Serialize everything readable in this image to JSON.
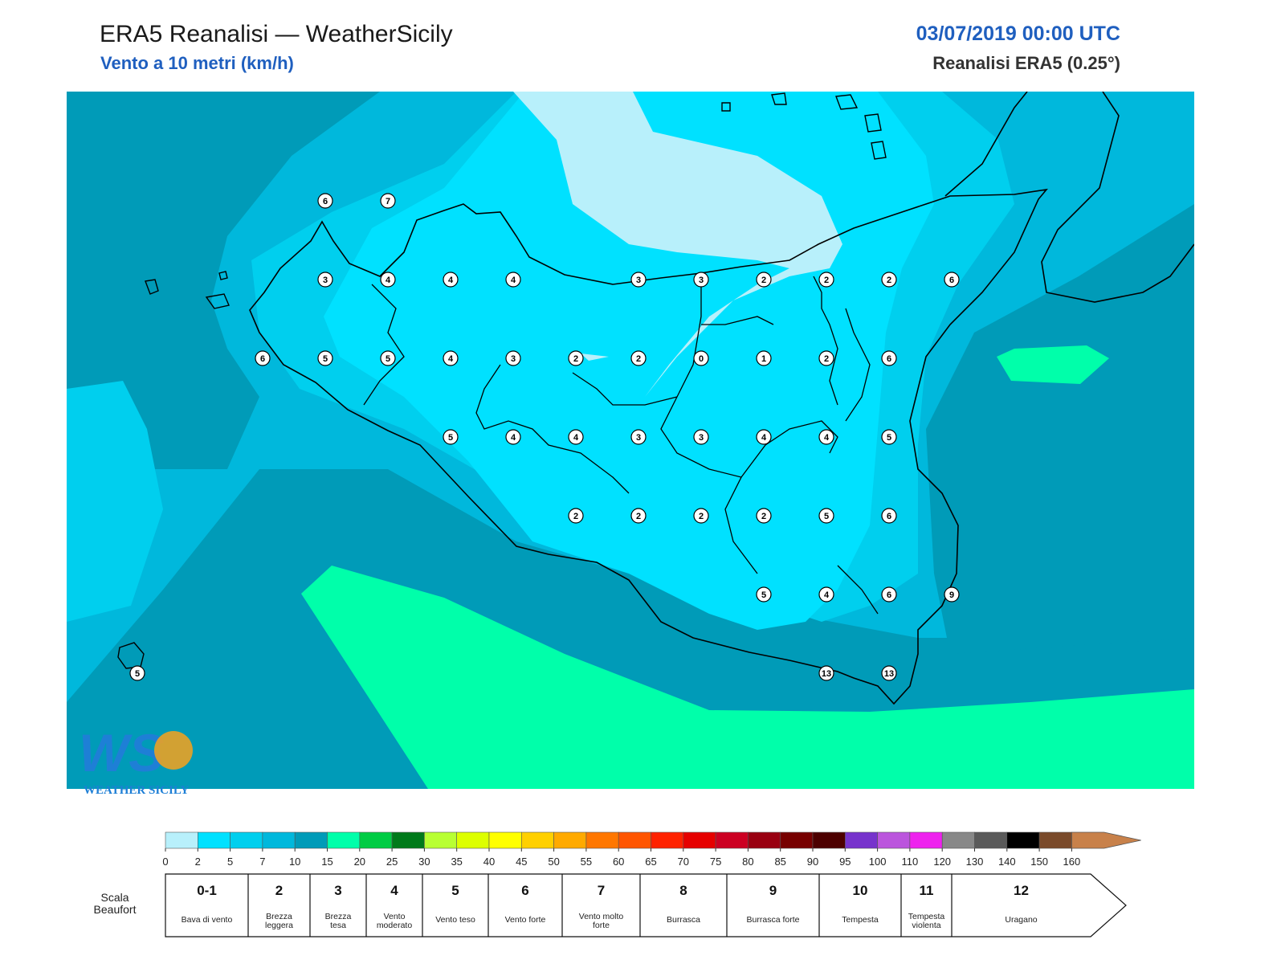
{
  "header": {
    "title": "ERA5 Reanalisi — WeatherSicily",
    "subtitle": "Vento a 10 metri (km/h)",
    "datetime": "03/07/2019 00:00 UTC",
    "model": "Reanalisi ERA5 (0.25°)"
  },
  "logo": {
    "text": "WEATHER SICILY",
    "initials": "WS"
  },
  "colorbar": {
    "ticks": [
      "0",
      "2",
      "5",
      "7",
      "10",
      "15",
      "20",
      "25",
      "30",
      "35",
      "40",
      "45",
      "50",
      "55",
      "60",
      "65",
      "70",
      "75",
      "80",
      "85",
      "90",
      "95",
      "100",
      "110",
      "120",
      "130",
      "140",
      "150",
      "160"
    ],
    "colors": [
      "#b8f0fb",
      "#00e1ff",
      "#00cfee",
      "#00b8dc",
      "#009bb8",
      "#00ffaa",
      "#00cc44",
      "#007a1a",
      "#b8ff33",
      "#ddff00",
      "#ffff00",
      "#ffd000",
      "#ffaa00",
      "#ff7700",
      "#ff5500",
      "#ff2200",
      "#e60000",
      "#cc0022",
      "#990011",
      "#770000",
      "#4d0000",
      "#7733cc",
      "#bb55dd",
      "#ee22ee",
      "#888888",
      "#5a5a5a",
      "#000000",
      "#7a4a2a",
      "#c8814a"
    ]
  },
  "beaufort": {
    "title": "Scala Beaufort",
    "items": [
      {
        "num": "0-1",
        "desc": "Bava di vento"
      },
      {
        "num": "2",
        "desc": "Brezza leggera"
      },
      {
        "num": "3",
        "desc": "Brezza tesa"
      },
      {
        "num": "4",
        "desc": "Vento moderato"
      },
      {
        "num": "5",
        "desc": "Vento teso"
      },
      {
        "num": "6",
        "desc": "Vento forte"
      },
      {
        "num": "7",
        "desc": "Vento molto forte"
      },
      {
        "num": "8",
        "desc": "Burrasca"
      },
      {
        "num": "9",
        "desc": "Burrasca forte"
      },
      {
        "num": "10",
        "desc": "Tempesta"
      },
      {
        "num": "11",
        "desc": "Tempesta violenta"
      },
      {
        "num": "12",
        "desc": "Uragano"
      }
    ]
  },
  "stations": [
    {
      "v": "6",
      "col": 0,
      "row": -1
    },
    {
      "v": "7",
      "col": 1,
      "row": -1
    },
    {
      "v": "3",
      "col": 0,
      "row": 0
    },
    {
      "v": "4",
      "col": 1,
      "row": 0
    },
    {
      "v": "4",
      "col": 2,
      "row": 0
    },
    {
      "v": "4",
      "col": 3,
      "row": 0
    },
    {
      "v": "3",
      "col": 5,
      "row": 0
    },
    {
      "v": "3",
      "col": 6,
      "row": 0
    },
    {
      "v": "2",
      "col": 7,
      "row": 0
    },
    {
      "v": "2",
      "col": 8,
      "row": 0
    },
    {
      "v": "2",
      "col": 9,
      "row": 0
    },
    {
      "v": "6",
      "col": 10,
      "row": 0
    },
    {
      "v": "6",
      "col": -1,
      "row": 1
    },
    {
      "v": "5",
      "col": 0,
      "row": 1
    },
    {
      "v": "5",
      "col": 1,
      "row": 1
    },
    {
      "v": "4",
      "col": 2,
      "row": 1
    },
    {
      "v": "3",
      "col": 3,
      "row": 1
    },
    {
      "v": "2",
      "col": 4,
      "row": 1
    },
    {
      "v": "2",
      "col": 5,
      "row": 1
    },
    {
      "v": "0",
      "col": 6,
      "row": 1
    },
    {
      "v": "1",
      "col": 7,
      "row": 1
    },
    {
      "v": "2",
      "col": 8,
      "row": 1
    },
    {
      "v": "6",
      "col": 9,
      "row": 1
    },
    {
      "v": "5",
      "col": 2,
      "row": 2
    },
    {
      "v": "4",
      "col": 3,
      "row": 2
    },
    {
      "v": "4",
      "col": 4,
      "row": 2
    },
    {
      "v": "3",
      "col": 5,
      "row": 2
    },
    {
      "v": "3",
      "col": 6,
      "row": 2
    },
    {
      "v": "4",
      "col": 7,
      "row": 2
    },
    {
      "v": "4",
      "col": 8,
      "row": 2
    },
    {
      "v": "5",
      "col": 9,
      "row": 2
    },
    {
      "v": "2",
      "col": 4,
      "row": 3
    },
    {
      "v": "2",
      "col": 5,
      "row": 3
    },
    {
      "v": "2",
      "col": 6,
      "row": 3
    },
    {
      "v": "2",
      "col": 7,
      "row": 3
    },
    {
      "v": "5",
      "col": 8,
      "row": 3
    },
    {
      "v": "6",
      "col": 9,
      "row": 3
    },
    {
      "v": "5",
      "col": 7,
      "row": 4
    },
    {
      "v": "4",
      "col": 8,
      "row": 4
    },
    {
      "v": "6",
      "col": 9,
      "row": 4
    },
    {
      "v": "9",
      "col": 10,
      "row": 4
    },
    {
      "v": "13",
      "col": 8,
      "row": 5
    },
    {
      "v": "13",
      "col": 9,
      "row": 5
    },
    {
      "v": "5",
      "col": -3,
      "row": 5
    }
  ]
}
